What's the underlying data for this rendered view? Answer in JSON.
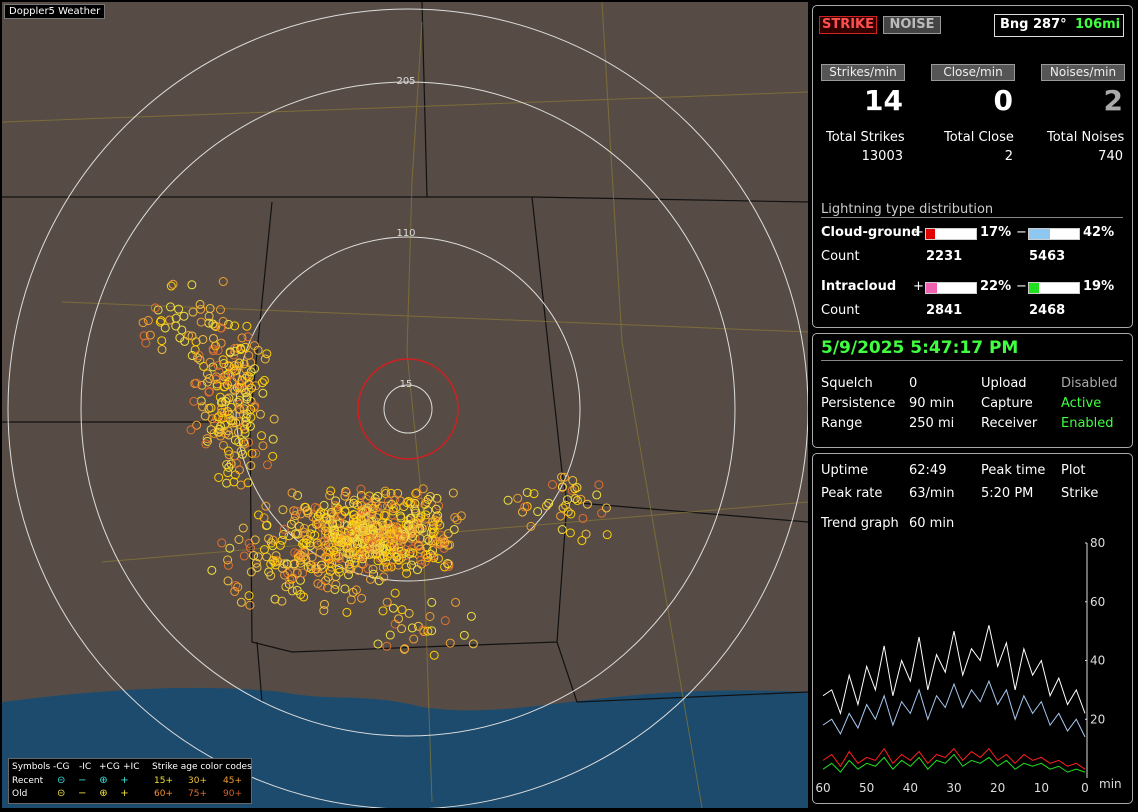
{
  "window_title": "Doppler5 Weather",
  "map": {
    "range_rings": [
      "205",
      "110",
      "15"
    ],
    "legend": {
      "symbols_label": "Symbols",
      "columns": [
        "-CG",
        "-IC",
        "+CG",
        "+IC"
      ],
      "age_label": "Strike age color codes",
      "rows": [
        {
          "label": "Recent",
          "ages": [
            "15+",
            "30+",
            "45+"
          ]
        },
        {
          "label": "Old",
          "ages": [
            "60+",
            "75+",
            "90+"
          ]
        }
      ]
    }
  },
  "status": {
    "buttons": [
      "STRIKE",
      "NOISE"
    ],
    "bearing": "Bng 287°",
    "distance": "106mi"
  },
  "rates": [
    {
      "label": "Strikes/min",
      "value": 14
    },
    {
      "label": "Close/min",
      "value": 0
    },
    {
      "label": "Noises/min",
      "value": 2
    }
  ],
  "totals": [
    {
      "label": "Total Strikes",
      "value": 13003
    },
    {
      "label": "Total Close",
      "value": 2
    },
    {
      "label": "Total Noises",
      "value": 740
    }
  ],
  "distribution": {
    "title": "Lightning type distribution",
    "count_label": "Count",
    "rows": [
      {
        "label": "Cloud-ground",
        "pos": {
          "sign": "+",
          "color": "#e00000",
          "percent": {
            "value": 17,
            "label": "17%"
          },
          "count": 2231
        },
        "neg": {
          "sign": "−",
          "color": "#8ec8f0",
          "percent": {
            "value": 42,
            "label": "42%"
          },
          "count": 5463
        }
      },
      {
        "label": "Intracloud",
        "pos": {
          "sign": "+",
          "color": "#f060b0",
          "percent": {
            "value": 22,
            "label": "22%"
          },
          "count": 2841
        },
        "neg": {
          "sign": "−",
          "color": "#20e020",
          "percent": {
            "value": 19,
            "label": "19%"
          },
          "count": 2468
        }
      }
    ]
  },
  "datetime": "5/9/2025 5:47:17 PM",
  "settings": [
    [
      "Squelch",
      0,
      "Upload",
      "Disabled"
    ],
    [
      "Persistence",
      "90 min",
      "Capture",
      "Active"
    ],
    [
      "Range",
      "250 mi",
      "Receiver",
      "Enabled"
    ]
  ],
  "stats": [
    [
      "Uptime",
      "62:49",
      "Peak time",
      "Plot"
    ],
    [
      "Peak rate",
      "63/min",
      "5:20 PM",
      "Strike"
    ]
  ],
  "trend": [
    "Trend graph",
    "60 min"
  ],
  "chart_data": {
    "type": "line",
    "x_label": "min",
    "x": [
      60,
      58,
      56,
      54,
      52,
      50,
      48,
      46,
      44,
      42,
      40,
      38,
      36,
      34,
      32,
      30,
      28,
      26,
      24,
      22,
      20,
      18,
      16,
      14,
      12,
      10,
      8,
      6,
      4,
      2,
      0
    ],
    "xlim": [
      60,
      0
    ],
    "xticks": [
      60,
      50,
      40,
      30,
      20,
      10,
      0
    ],
    "ylim": [
      0,
      80
    ],
    "yticks": [
      20,
      40,
      60,
      80
    ],
    "series": [
      {
        "color": "#ffffff",
        "values": [
          28,
          30,
          22,
          35,
          25,
          38,
          30,
          45,
          28,
          40,
          33,
          48,
          30,
          42,
          36,
          50,
          35,
          44,
          40,
          52,
          38,
          46,
          30,
          44,
          35,
          40,
          28,
          34,
          25,
          30,
          22
        ]
      },
      {
        "color": "#a8c8f0",
        "values": [
          18,
          20,
          15,
          22,
          17,
          25,
          20,
          28,
          18,
          26,
          22,
          30,
          20,
          28,
          24,
          32,
          24,
          30,
          26,
          33,
          25,
          30,
          20,
          28,
          22,
          26,
          18,
          22,
          16,
          20,
          14
        ]
      },
      {
        "color": "#ff2020",
        "values": [
          6,
          8,
          4,
          9,
          5,
          7,
          6,
          10,
          5,
          8,
          6,
          9,
          5,
          8,
          7,
          10,
          6,
          9,
          7,
          10,
          6,
          8,
          5,
          8,
          6,
          7,
          5,
          6,
          4,
          5,
          3
        ]
      },
      {
        "color": "#20e020",
        "values": [
          3,
          5,
          2,
          6,
          3,
          5,
          4,
          7,
          3,
          6,
          4,
          7,
          3,
          6,
          5,
          8,
          4,
          6,
          5,
          7,
          4,
          6,
          3,
          5,
          4,
          5,
          3,
          4,
          2,
          3,
          2
        ]
      }
    ]
  }
}
